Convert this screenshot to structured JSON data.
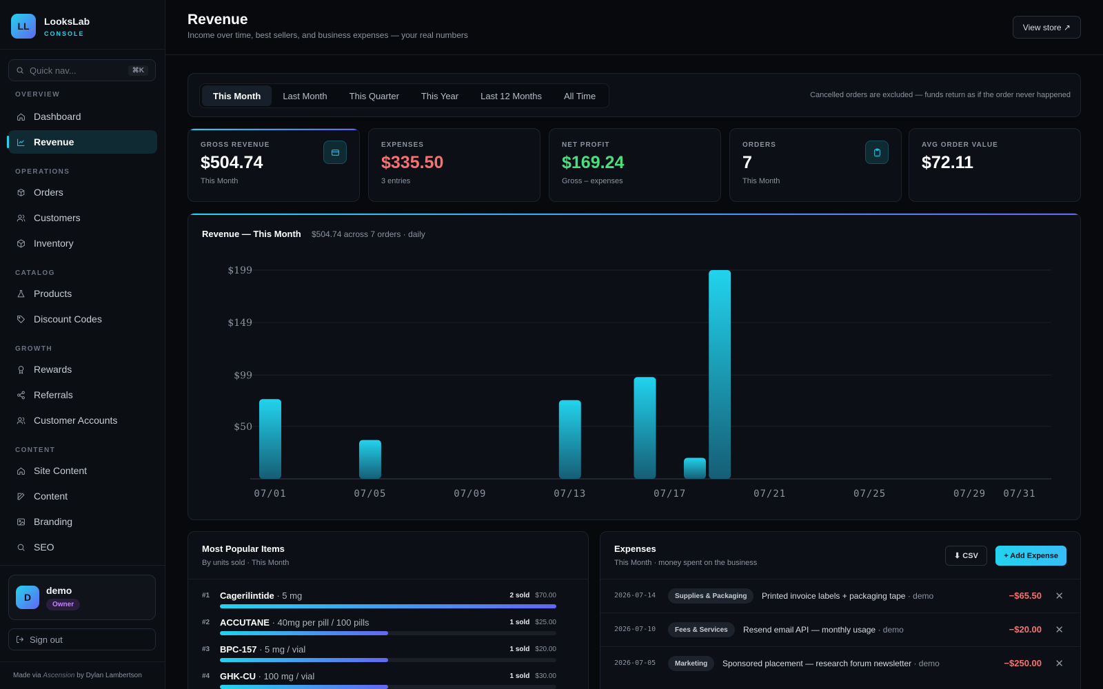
{
  "brand": {
    "logo": "LL",
    "name": "LooksLab",
    "sub": "CONSOLE"
  },
  "quicknav": {
    "placeholder": "Quick nav...",
    "shortcut": "⌘K"
  },
  "nav": {
    "sections": [
      "OVERVIEW",
      "OPERATIONS",
      "CATALOG",
      "GROWTH",
      "CONTENT"
    ],
    "items": [
      {
        "label": "Dashboard",
        "icon": "home-icon"
      },
      {
        "label": "Revenue",
        "icon": "chart-line-icon",
        "active": true
      },
      {
        "label": "Orders",
        "icon": "box-icon"
      },
      {
        "label": "Customers",
        "icon": "users-icon"
      },
      {
        "label": "Inventory",
        "icon": "cube-icon"
      },
      {
        "label": "Products",
        "icon": "flask-icon"
      },
      {
        "label": "Discount Codes",
        "icon": "tag-icon"
      },
      {
        "label": "Rewards",
        "icon": "award-icon"
      },
      {
        "label": "Referrals",
        "icon": "share-icon"
      },
      {
        "label": "Customer Accounts",
        "icon": "users-icon"
      },
      {
        "label": "Site Content",
        "icon": "home-icon"
      },
      {
        "label": "Content",
        "icon": "edit-icon"
      },
      {
        "label": "Branding",
        "icon": "image-icon"
      },
      {
        "label": "SEO",
        "icon": "search-icon"
      }
    ]
  },
  "user": {
    "initial": "D",
    "name": "demo",
    "role": "Owner"
  },
  "signout": "Sign out",
  "credit": {
    "prefix": "Made via ",
    "tool": "Ascension",
    "suffix": " by Dylan Lambertson"
  },
  "header": {
    "title": "Revenue",
    "subtitle": "Income over time, best sellers, and business expenses — your real numbers",
    "view_store": "View store ↗"
  },
  "range": {
    "tabs": [
      "This Month",
      "Last Month",
      "This Quarter",
      "This Year",
      "Last 12 Months",
      "All Time"
    ],
    "active": "This Month",
    "note": "Cancelled orders are excluded — funds return as if the order never happened"
  },
  "kpis": [
    {
      "label": "GROSS REVENUE",
      "value": "$504.74",
      "sub": "This Month",
      "icon": "credit-card-icon"
    },
    {
      "label": "EXPENSES",
      "value": "$335.50",
      "sub": "3 entries"
    },
    {
      "label": "NET PROFIT",
      "value": "$169.24",
      "sub": "Gross – expenses"
    },
    {
      "label": "ORDERS",
      "value": "7",
      "sub": "This Month",
      "icon": "clipboard-icon"
    },
    {
      "label": "AVG ORDER VALUE",
      "value": "$72.11",
      "sub": ""
    }
  ],
  "chart_card": {
    "title": "Revenue — This Month",
    "meta": "$504.74 across 7 orders · daily"
  },
  "chart_data": {
    "type": "bar",
    "title": "Revenue — This Month",
    "x_ticks": [
      "07/01",
      "07/05",
      "07/09",
      "07/13",
      "07/17",
      "07/21",
      "07/25",
      "07/29",
      "07/31"
    ],
    "y_ticks": [
      "$50",
      "$99",
      "$149",
      "$199"
    ],
    "y_tick_values": [
      50,
      99,
      149,
      199
    ],
    "ylim": [
      0,
      199
    ],
    "xlim": [
      1,
      31
    ],
    "days": [
      1,
      5,
      13,
      16,
      18,
      19
    ],
    "values": [
      76,
      37,
      75,
      97,
      20,
      199
    ],
    "grid": true,
    "colors": {
      "bar_top": "#22d3ee",
      "bar_bottom": "#155e75"
    }
  },
  "popular": {
    "title": "Most Popular Items",
    "subtitle": "By units sold · This Month",
    "items": [
      {
        "rank": "#1",
        "name": "Cagerilintide",
        "variant": " · 5 mg",
        "sold": "2 sold",
        "amount": "$70.00",
        "share": 1.0
      },
      {
        "rank": "#2",
        "name": "ACCUTANE",
        "variant": " · 40mg per pill / 100 pills",
        "sold": "1 sold",
        "amount": "$25.00",
        "share": 0.5
      },
      {
        "rank": "#3",
        "name": "BPC-157",
        "variant": " · 5 mg / vial",
        "sold": "1 sold",
        "amount": "$20.00",
        "share": 0.5
      },
      {
        "rank": "#4",
        "name": "GHK-CU",
        "variant": " · 100 mg / vial",
        "sold": "1 sold",
        "amount": "$30.00",
        "share": 0.5
      }
    ]
  },
  "expenses": {
    "title": "Expenses",
    "subtitle": "This Month · money spent on the business",
    "csv": "⬇ CSV",
    "add": "+ Add Expense",
    "rows": [
      {
        "date": "2026-07-14",
        "category": "Supplies & Packaging",
        "desc": "Printed invoice labels + packaging tape",
        "by": " · demo",
        "amount": "−$65.50"
      },
      {
        "date": "2026-07-10",
        "category": "Fees & Services",
        "desc": "Resend email API — monthly usage",
        "by": " · demo",
        "amount": "−$20.00"
      },
      {
        "date": "2026-07-05",
        "category": "Marketing",
        "desc": "Sponsored placement — research forum newsletter",
        "by": " · demo",
        "amount": "−$250.00"
      }
    ]
  }
}
